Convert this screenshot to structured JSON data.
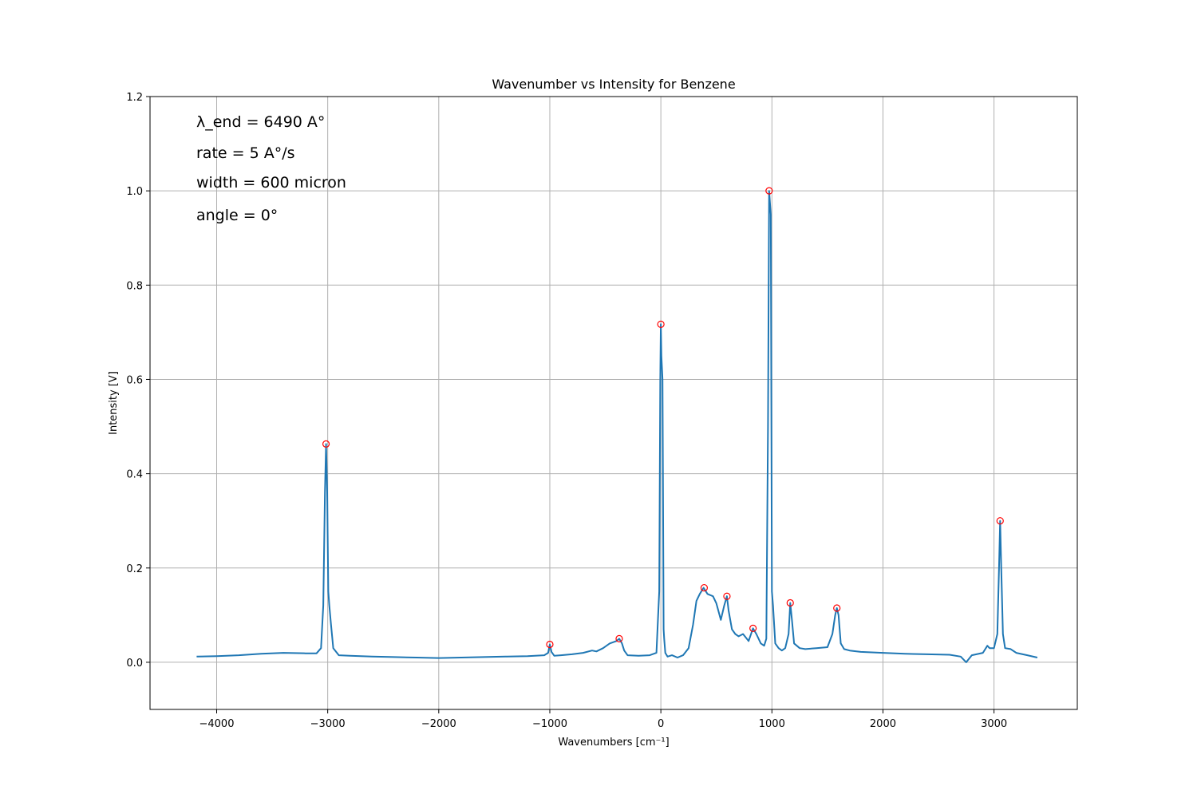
{
  "chart_data": {
    "type": "line",
    "title": "Wavenumber vs Intensity for Benzene",
    "xlabel": "Wavenumbers [cm⁻¹]",
    "ylabel": "Intensity [V]",
    "xlim": [
      -4600,
      3750
    ],
    "ylim": [
      -0.1,
      1.2
    ],
    "xticks": [
      -4000,
      -3000,
      -2000,
      -1000,
      0,
      1000,
      2000,
      3000
    ],
    "xtick_labels": [
      "−4000",
      "−3000",
      "−2000",
      "−1000",
      "0",
      "1000",
      "2000",
      "3000"
    ],
    "yticks": [
      0.0,
      0.2,
      0.4,
      0.6,
      0.8,
      1.0,
      1.2
    ],
    "ytick_labels": [
      "0.0",
      "0.2",
      "0.4",
      "0.6",
      "0.8",
      "1.0",
      "1.2"
    ],
    "grid": true,
    "annotations": [
      "λ_end = 6490 A°",
      "rate = 5 A°/s",
      "width = 600 micron",
      "angle = 0°"
    ],
    "series": [
      {
        "color": "#1f77b4",
        "x": [
          -4180,
          -4000,
          -3800,
          -3600,
          -3400,
          -3200,
          -3100,
          -3060,
          -3040,
          -3025,
          -3015,
          -3005,
          -2995,
          -2985,
          -2970,
          -2950,
          -2900,
          -2800,
          -2600,
          -2400,
          -2200,
          -2000,
          -1800,
          -1600,
          -1400,
          -1200,
          -1050,
          -1015,
          -1000,
          -985,
          -960,
          -900,
          -800,
          -700,
          -620,
          -580,
          -520,
          -460,
          -400,
          -375,
          -350,
          -330,
          -300,
          -200,
          -100,
          -40,
          -15,
          -5,
          0,
          5,
          15,
          25,
          30,
          40,
          60,
          100,
          150,
          200,
          250,
          290,
          320,
          350,
          385,
          420,
          470,
          500,
          540,
          570,
          595,
          610,
          640,
          670,
          700,
          740,
          790,
          830,
          860,
          900,
          930,
          950,
          965,
          975,
          990,
          1000,
          1010,
          1030,
          1060,
          1090,
          1120,
          1150,
          1165,
          1180,
          1200,
          1250,
          1300,
          1400,
          1500,
          1545,
          1570,
          1585,
          1600,
          1620,
          1650,
          1700,
          1800,
          2000,
          2200,
          2400,
          2600,
          2700,
          2750,
          2800,
          2900,
          2940,
          2960,
          3000,
          3030,
          3045,
          3055,
          3065,
          3080,
          3100,
          3150,
          3200,
          3300,
          3390
        ],
        "y": [
          0.012,
          0.013,
          0.015,
          0.018,
          0.02,
          0.019,
          0.019,
          0.03,
          0.12,
          0.36,
          0.463,
          0.36,
          0.15,
          0.12,
          0.08,
          0.03,
          0.015,
          0.014,
          0.012,
          0.011,
          0.01,
          0.009,
          0.01,
          0.011,
          0.012,
          0.013,
          0.015,
          0.02,
          0.038,
          0.022,
          0.014,
          0.015,
          0.017,
          0.02,
          0.025,
          0.023,
          0.03,
          0.04,
          0.045,
          0.05,
          0.04,
          0.025,
          0.015,
          0.014,
          0.015,
          0.02,
          0.15,
          0.6,
          0.717,
          0.65,
          0.6,
          0.07,
          0.05,
          0.02,
          0.012,
          0.015,
          0.01,
          0.015,
          0.03,
          0.08,
          0.13,
          0.145,
          0.158,
          0.145,
          0.14,
          0.125,
          0.09,
          0.12,
          0.14,
          0.11,
          0.07,
          0.06,
          0.055,
          0.06,
          0.045,
          0.072,
          0.06,
          0.04,
          0.035,
          0.05,
          0.5,
          1.0,
          0.95,
          0.15,
          0.12,
          0.04,
          0.03,
          0.025,
          0.03,
          0.06,
          0.126,
          0.09,
          0.04,
          0.03,
          0.028,
          0.03,
          0.032,
          0.06,
          0.1,
          0.115,
          0.1,
          0.04,
          0.028,
          0.025,
          0.022,
          0.02,
          0.018,
          0.017,
          0.016,
          0.012,
          0.0,
          0.015,
          0.02,
          0.035,
          0.03,
          0.03,
          0.06,
          0.2,
          0.3,
          0.2,
          0.06,
          0.03,
          0.028,
          0.02,
          0.015,
          0.01
        ]
      }
    ],
    "peaks": {
      "color": "#ff0000",
      "x": [
        -3015,
        -1000,
        -375,
        0,
        390,
        595,
        830,
        975,
        1165,
        1585,
        3055
      ],
      "y": [
        0.463,
        0.038,
        0.05,
        0.717,
        0.158,
        0.14,
        0.072,
        1.0,
        0.126,
        0.115,
        0.3
      ]
    }
  }
}
